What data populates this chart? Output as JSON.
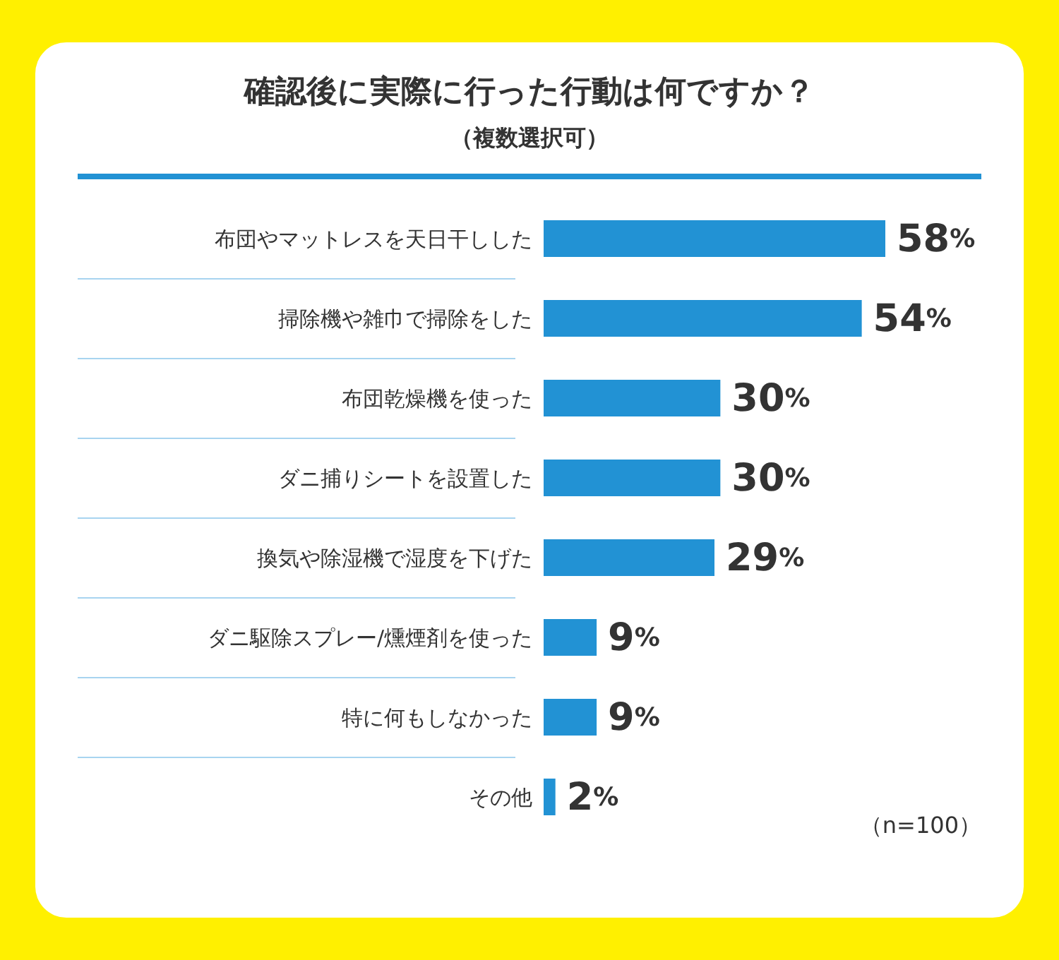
{
  "chart_data": {
    "type": "bar",
    "orientation": "horizontal",
    "title": "確認後に実際に行った行動は何ですか？",
    "subtitle": "（複数選択可）",
    "categories": [
      "布団やマットレスを天日干しした",
      "掃除機や雑巾で掃除をした",
      "布団乾燥機を使った",
      "ダニ捕りシートを設置した",
      "換気や除湿機で湿度を下げた",
      "ダニ駆除スプレー/燻煙剤を使った",
      "特に何もしなかった",
      "その他"
    ],
    "values": [
      58,
      54,
      30,
      30,
      29,
      9,
      9,
      2
    ],
    "value_labels": [
      "58%",
      "54%",
      "30%",
      "30%",
      "29%",
      "9%",
      "9%",
      "2%"
    ],
    "color": "#2292d4",
    "grid": "y",
    "annotations": [
      "（n=100）"
    ]
  }
}
